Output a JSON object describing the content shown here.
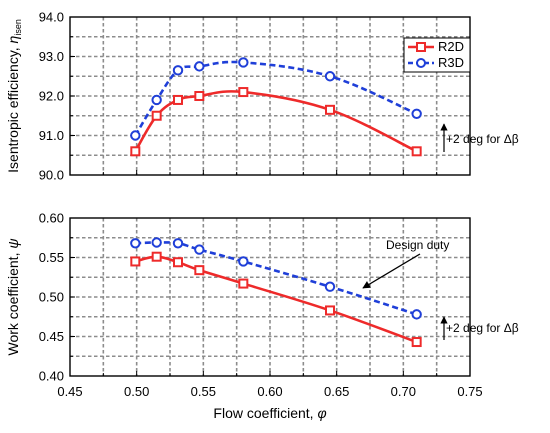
{
  "chart_data": [
    {
      "type": "line",
      "ylabel": "Isentropic efficiency, η_isen",
      "ylabel_main": "Isentropic efficiency, ",
      "ylabel_symbol": "η",
      "ylabel_sub": "isen",
      "ylim": [
        90.0,
        94.0
      ],
      "yticks": [
        "90.0",
        "91.0",
        "92.0",
        "93.0",
        "94.0"
      ],
      "xlim": [
        0.45,
        0.75
      ],
      "grid": true,
      "legend_position": "top-right",
      "series": [
        {
          "name": "R2D",
          "color": "#ee2a2a",
          "style": "solid",
          "marker": "square",
          "x": [
            0.499,
            0.515,
            0.531,
            0.547,
            0.58,
            0.645,
            0.71
          ],
          "y": [
            90.6,
            91.5,
            91.9,
            92.0,
            92.1,
            91.65,
            90.6
          ]
        },
        {
          "name": "R3D",
          "color": "#1f3fd8",
          "style": "dashed",
          "marker": "circle",
          "x": [
            0.499,
            0.515,
            0.531,
            0.547,
            0.58,
            0.645,
            0.71
          ],
          "y": [
            91.0,
            91.9,
            92.65,
            92.75,
            92.85,
            92.5,
            91.55
          ]
        }
      ],
      "annotations": [
        {
          "text": "+2 deg for Δβ",
          "x": 0.71,
          "y_from": 90.6,
          "y_to": 91.55
        }
      ]
    },
    {
      "type": "line",
      "ylabel": "Work coefficient, ψ",
      "ylabel_main": "Work coefficient, ",
      "ylabel_symbol": "ψ",
      "ylim": [
        0.4,
        0.6
      ],
      "yticks": [
        "0.40",
        "0.45",
        "0.50",
        "0.55",
        "0.60"
      ],
      "xlabel": "Flow coefficient, φ",
      "xlabel_main": "Flow coefficient, ",
      "xlabel_symbol": "φ",
      "xlim": [
        0.45,
        0.75
      ],
      "xticks": [
        "0.45",
        "0.50",
        "0.55",
        "0.60",
        "0.65",
        "0.70",
        "0.75"
      ],
      "grid": true,
      "series": [
        {
          "name": "R2D",
          "color": "#ee2a2a",
          "style": "solid",
          "marker": "square",
          "x": [
            0.499,
            0.515,
            0.531,
            0.547,
            0.58,
            0.645,
            0.71
          ],
          "y": [
            0.545,
            0.551,
            0.544,
            0.534,
            0.517,
            0.483,
            0.443
          ]
        },
        {
          "name": "R3D",
          "color": "#1f3fd8",
          "style": "dashed",
          "marker": "circle",
          "x": [
            0.499,
            0.515,
            0.531,
            0.547,
            0.58,
            0.645,
            0.71
          ],
          "y": [
            0.568,
            0.569,
            0.568,
            0.56,
            0.545,
            0.513,
            0.478
          ]
        }
      ],
      "annotations": [
        {
          "text": "Design duty",
          "x": 0.652,
          "y": 0.511
        },
        {
          "text": "+2 deg for Δβ",
          "x": 0.71,
          "y_from": 0.443,
          "y_to": 0.478
        }
      ]
    }
  ]
}
